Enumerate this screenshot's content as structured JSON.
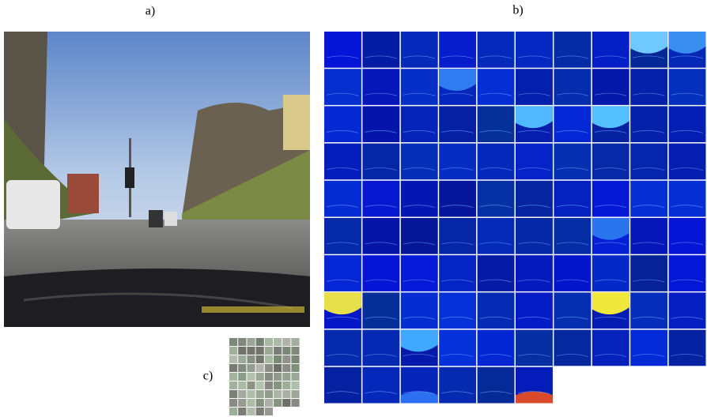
{
  "labels": {
    "a": "a)",
    "b": "b)",
    "c": "c)"
  }
}
